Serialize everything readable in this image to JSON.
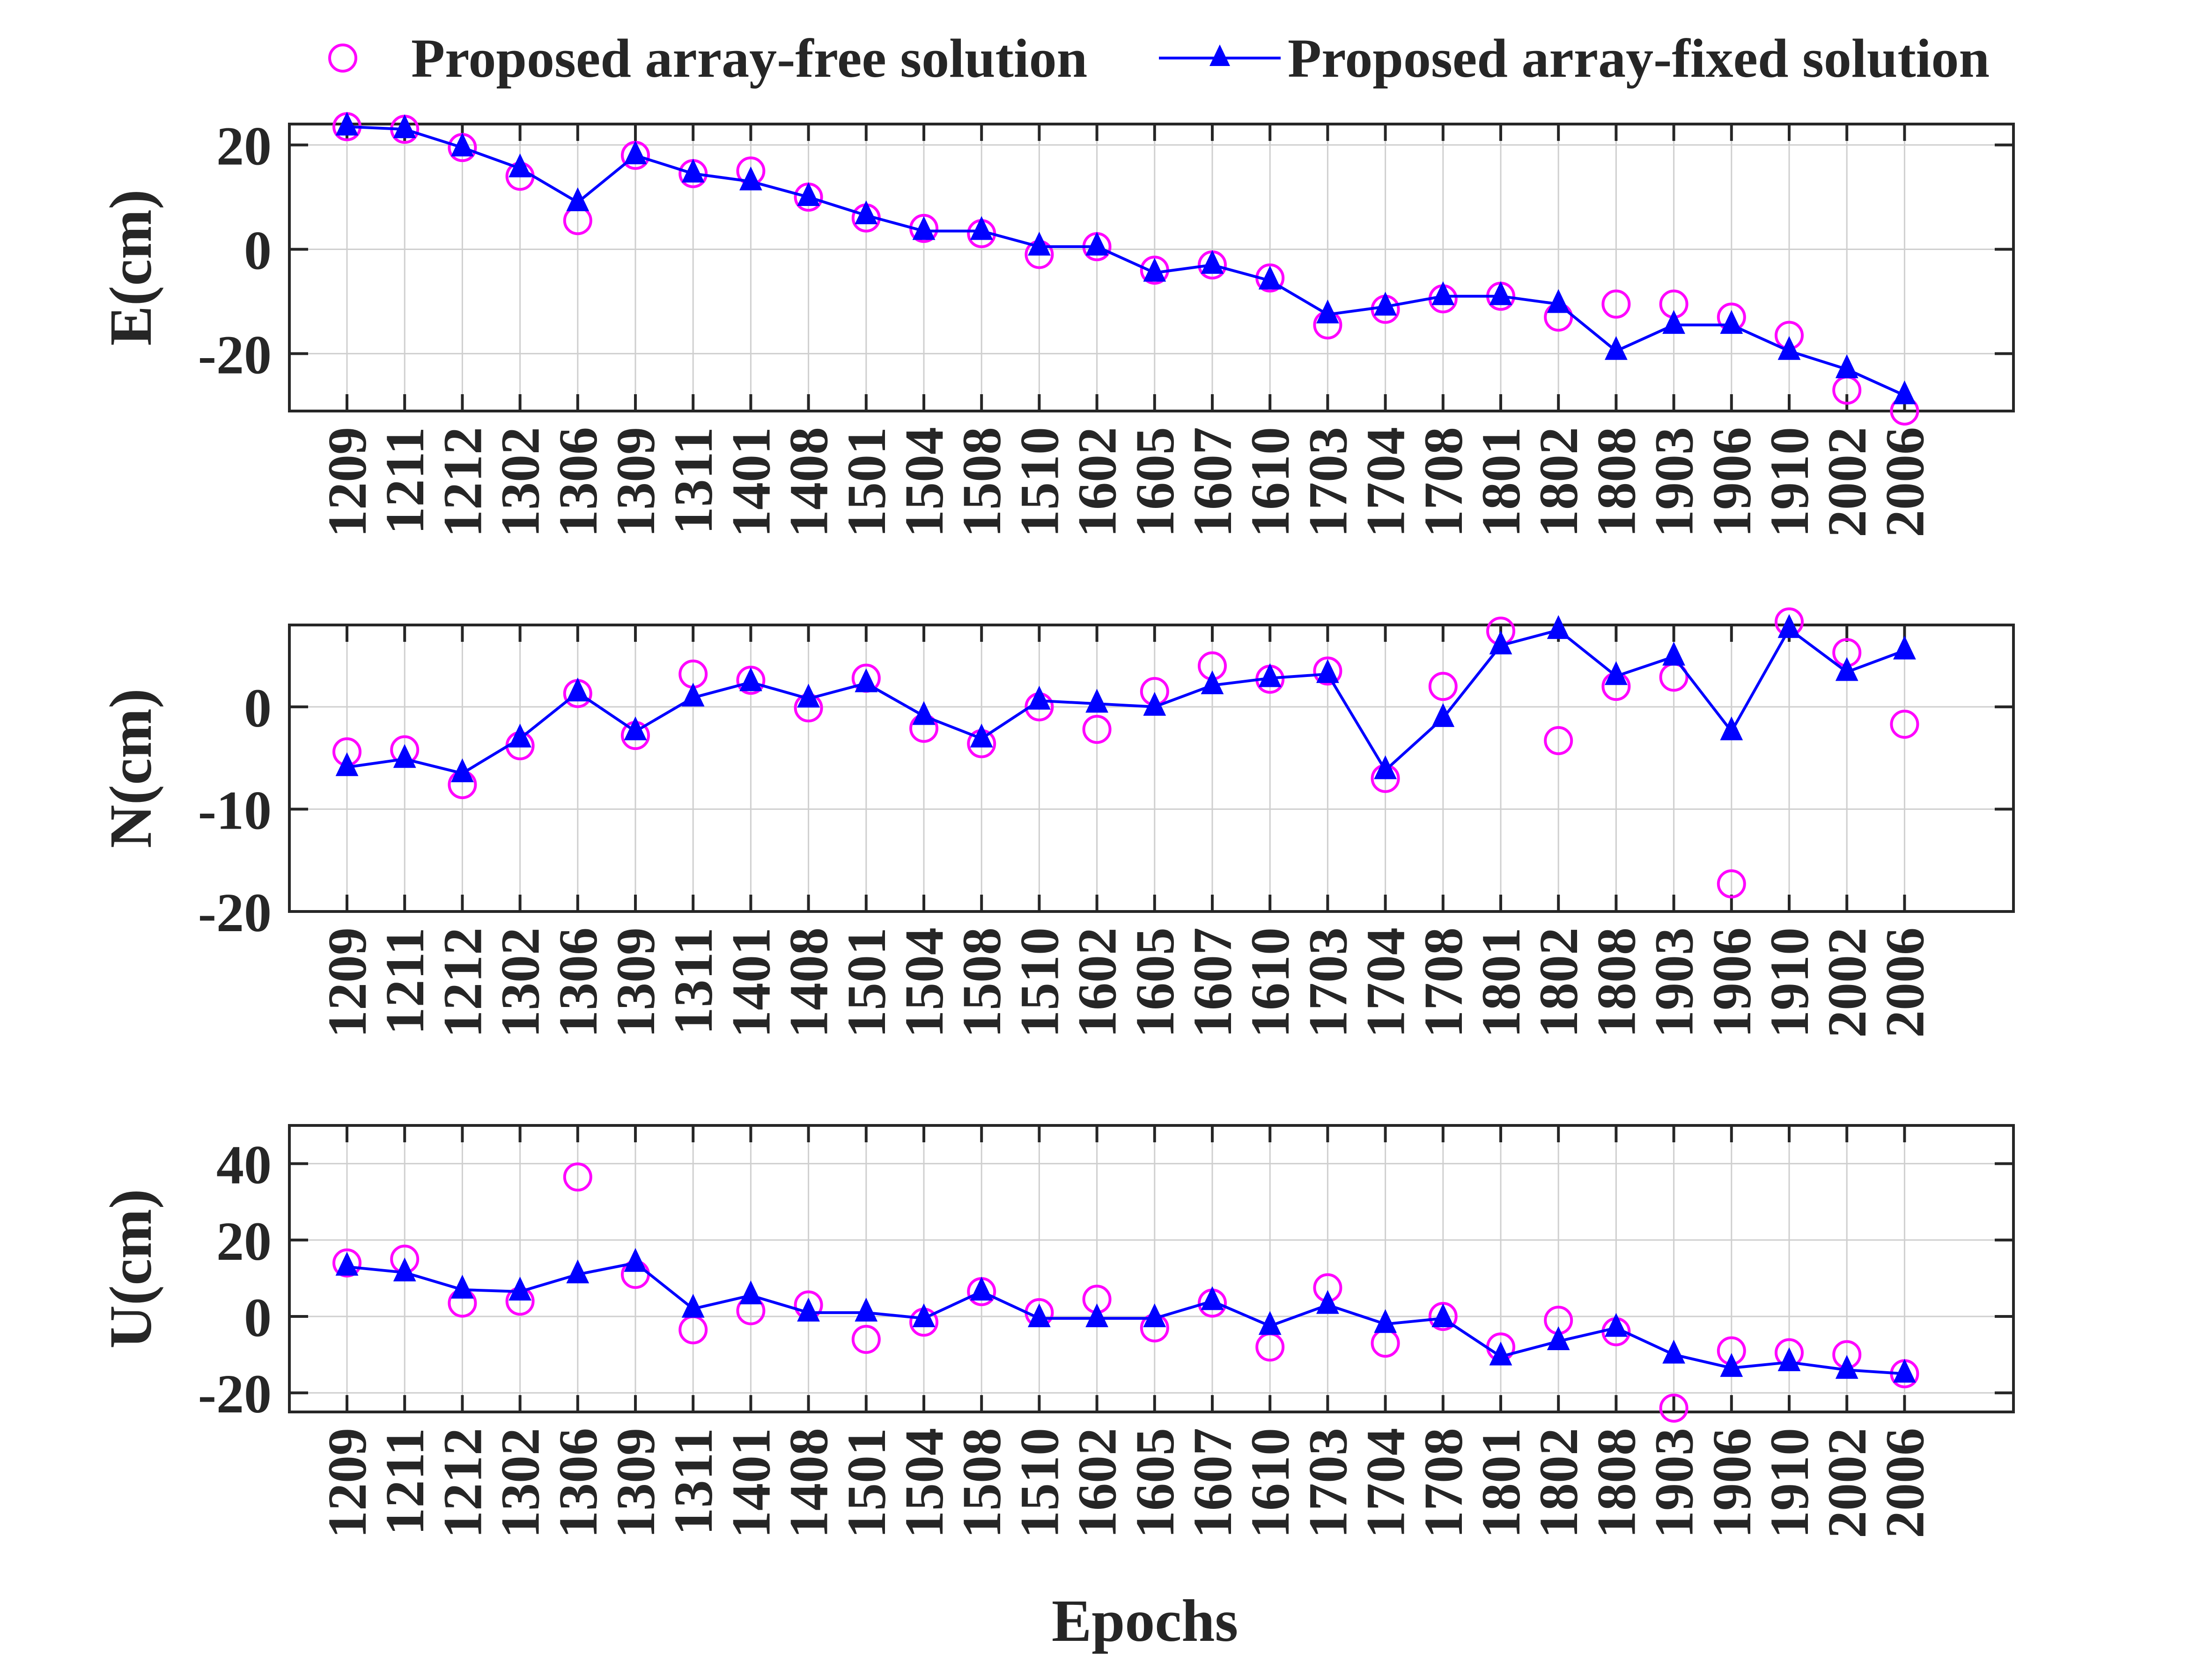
{
  "legend": {
    "placement": "top",
    "free_label": "Proposed array-free solution",
    "fixed_label": "Proposed array-fixed solution"
  },
  "colors": {
    "free": "#ff00ff",
    "fixed": "#0000ff",
    "axis": "#262626",
    "grid": "#cfcfcf"
  },
  "chart_data": [
    {
      "type": "line",
      "panel": "E",
      "ylabel": "E(cm)",
      "xlabel": "",
      "ylim": [
        -31,
        24
      ],
      "yticks": [
        "-20",
        "0",
        "20"
      ],
      "grid": true,
      "categories": [
        "1209",
        "1211",
        "1212",
        "1302",
        "1306",
        "1309",
        "1311",
        "1401",
        "1408",
        "1501",
        "1504",
        "1508",
        "1510",
        "1602",
        "1605",
        "1607",
        "1610",
        "1703",
        "1704",
        "1708",
        "1801",
        "1802",
        "1808",
        "1903",
        "1906",
        "1910",
        "2002",
        "2006"
      ],
      "series": [
        {
          "name": "Proposed array-free solution",
          "marker": "circle",
          "line": false,
          "values": [
            23.5,
            23,
            19.5,
            14,
            5.5,
            18,
            14.5,
            15,
            10,
            6,
            4,
            3,
            -1,
            0.5,
            -4,
            -3,
            -5.5,
            -14.5,
            -11.5,
            -9.5,
            -9,
            -13,
            -10.5,
            -10.5,
            -13,
            -16.5,
            -27,
            -31
          ]
        },
        {
          "name": "Proposed array-fixed solution",
          "marker": "triangle",
          "line": true,
          "values": [
            23.5,
            23,
            19.5,
            15.5,
            9,
            18,
            14.5,
            13,
            10,
            6.5,
            3.5,
            3.5,
            0.5,
            0.5,
            -4.5,
            -3,
            -6,
            -12.5,
            -11,
            -9,
            -9,
            -10.5,
            -19.5,
            -14.5,
            -14.5,
            -19.5,
            -23,
            -28
          ]
        }
      ]
    },
    {
      "type": "line",
      "panel": "N",
      "ylabel": "N(cm)",
      "xlabel": "",
      "ylim": [
        -20,
        8
      ],
      "yticks": [
        "-20",
        "-10",
        "0"
      ],
      "grid": true,
      "categories": [
        "1209",
        "1211",
        "1212",
        "1302",
        "1306",
        "1309",
        "1311",
        "1401",
        "1408",
        "1501",
        "1504",
        "1508",
        "1510",
        "1602",
        "1605",
        "1607",
        "1610",
        "1703",
        "1704",
        "1708",
        "1801",
        "1802",
        "1808",
        "1903",
        "1906",
        "1910",
        "2002",
        "2006"
      ],
      "series": [
        {
          "name": "Proposed array-free solution",
          "marker": "circle",
          "line": false,
          "values": [
            -4.4,
            -4.2,
            -7.6,
            -3.8,
            1.3,
            -2.8,
            3.2,
            2.6,
            -0.1,
            2.8,
            -2.1,
            -3.6,
            0,
            -2.2,
            1.5,
            4,
            2.7,
            3.5,
            -7,
            2,
            7.4,
            -3.3,
            2,
            2.9,
            -17.3,
            8.3,
            5.3,
            -1.7
          ]
        },
        {
          "name": "Proposed array-fixed solution",
          "marker": "triangle",
          "line": true,
          "values": [
            -5.9,
            -5.1,
            -6.5,
            -3.1,
            1.4,
            -2.4,
            0.9,
            2.4,
            0.8,
            2.3,
            -0.9,
            -3.1,
            0.6,
            0.3,
            0,
            2.1,
            2.8,
            3.2,
            -6.2,
            -1.1,
            6,
            7.5,
            3,
            4.9,
            -2.4,
            7.6,
            3.4,
            5.5
          ]
        }
      ]
    },
    {
      "type": "line",
      "panel": "U",
      "ylabel": "U(cm)",
      "xlabel": "Epochs",
      "ylim": [
        -25,
        50
      ],
      "yticks": [
        "-20",
        "0",
        "20",
        "40"
      ],
      "grid": true,
      "categories": [
        "1209",
        "1211",
        "1212",
        "1302",
        "1306",
        "1309",
        "1311",
        "1401",
        "1408",
        "1501",
        "1504",
        "1508",
        "1510",
        "1602",
        "1605",
        "1607",
        "1610",
        "1703",
        "1704",
        "1708",
        "1801",
        "1802",
        "1808",
        "1903",
        "1906",
        "1910",
        "2002",
        "2006"
      ],
      "series": [
        {
          "name": "Proposed array-free solution",
          "marker": "circle",
          "line": false,
          "values": [
            14,
            15,
            3.5,
            4,
            36.5,
            11,
            -3.5,
            1.5,
            3,
            -6,
            -1.5,
            6.5,
            1,
            4.5,
            -3,
            3.5,
            -8,
            7.5,
            -7,
            0,
            -8,
            -1,
            -4,
            -24,
            -9,
            -9.5,
            -10,
            -15
          ]
        },
        {
          "name": "Proposed array-fixed solution",
          "marker": "triangle",
          "line": true,
          "values": [
            13,
            11.5,
            7,
            6.5,
            11,
            14,
            2,
            5.5,
            1,
            1,
            -0.5,
            6.5,
            -0.5,
            -0.5,
            -0.5,
            4,
            -2.5,
            3,
            -2,
            -0.5,
            -10.5,
            -6.5,
            -3,
            -10,
            -13.5,
            -12,
            -14,
            -15
          ]
        }
      ]
    }
  ]
}
